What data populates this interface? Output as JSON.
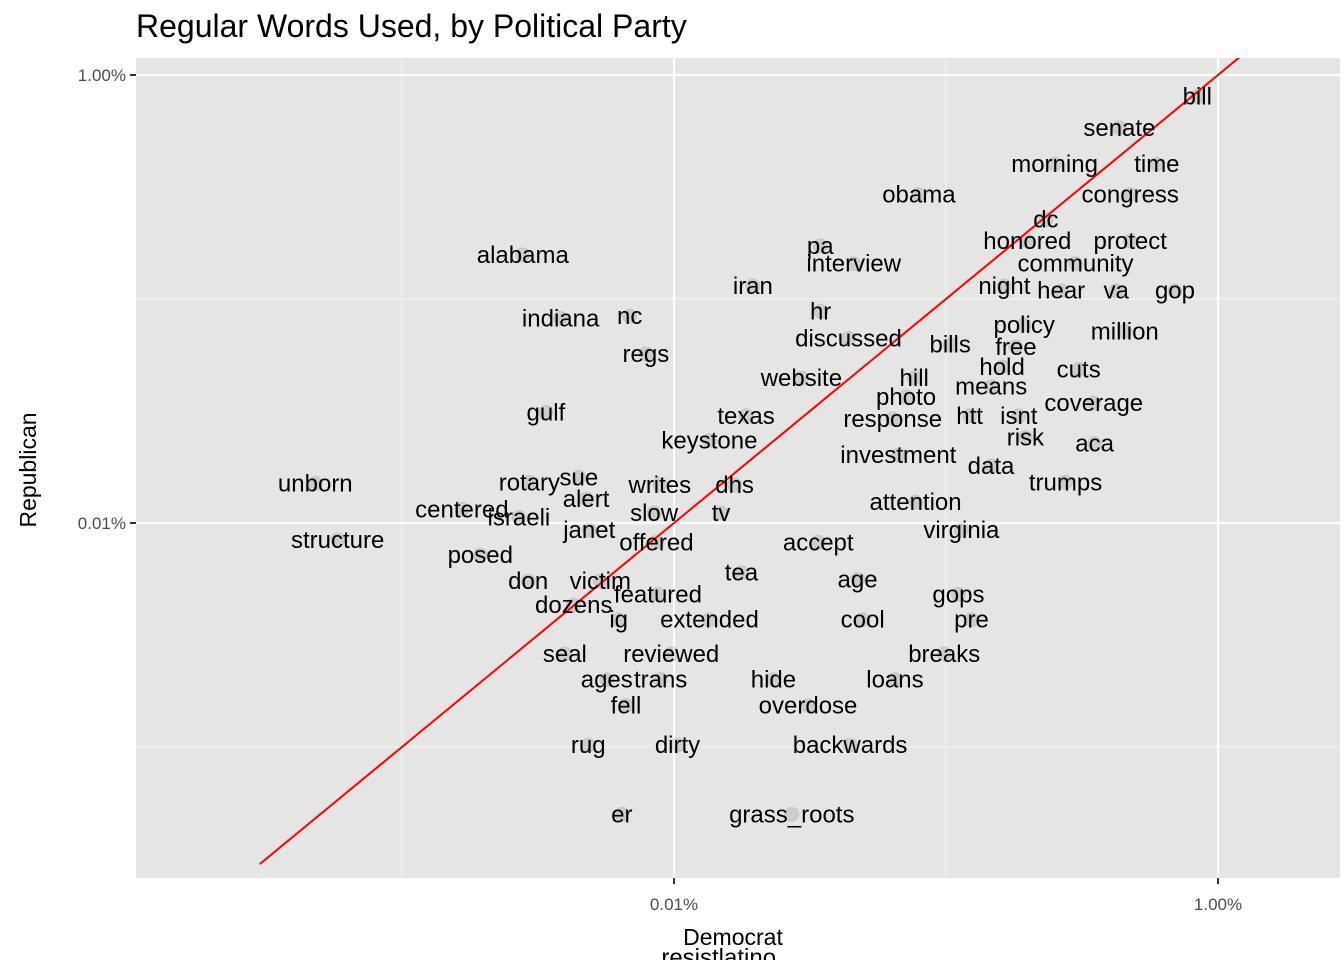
{
  "chart_data": {
    "type": "scatter",
    "title": "Regular Words Used, by Political Party",
    "xlabel": "Democrat",
    "ylabel": "Republican",
    "x_scale": "log10",
    "y_scale": "log10",
    "xlim": [
      0.00014,
      1.6
    ],
    "ylim": [
      2.5e-06,
      1.2
    ],
    "x_ticks": [
      {
        "value": 0.01,
        "label": "0.01%"
      },
      {
        "value": 1.0,
        "label": "1.00%"
      }
    ],
    "y_ticks": [
      {
        "value": 0.01,
        "label": "0.01%"
      },
      {
        "value": 1.0,
        "label": "1.00%"
      }
    ],
    "grid": true,
    "reference_line": {
      "type": "identity",
      "color": "#ff0000"
    },
    "point_color": "rgba(0,0,0,0.1)",
    "panel_color": "#e5e5e5",
    "labeled_points": [
      {
        "word": "bill",
        "x": 0.839,
        "y": 0.8005
      },
      {
        "word": "senate",
        "x": 0.434,
        "y": 0.5807
      },
      {
        "word": "time",
        "x": 0.596,
        "y": 0.4002
      },
      {
        "word": "morning",
        "x": 0.2507,
        "y": 0.4002
      },
      {
        "word": "obama",
        "x": 0.0795,
        "y": 0.2923
      },
      {
        "word": "congress",
        "x": 0.4757,
        "y": 0.2923
      },
      {
        "word": "dc",
        "x": 0.2329,
        "y": 0.2263
      },
      {
        "word": "protect",
        "x": 0.4757,
        "y": 0.1812
      },
      {
        "word": "honored",
        "x": 0.1991,
        "y": 0.1812
      },
      {
        "word": "alabama",
        "x": 0.00278,
        "y": 0.1573
      },
      {
        "word": "pa",
        "x": 0.0345,
        "y": 0.1726
      },
      {
        "word": "interview",
        "x": 0.0458,
        "y": 0.1437
      },
      {
        "word": "community",
        "x": 0.2994,
        "y": 0.1437
      },
      {
        "word": "night",
        "x": 0.1639,
        "y": 0.1143
      },
      {
        "word": "iran",
        "x": 0.0195,
        "y": 0.1143
      },
      {
        "word": "hear",
        "x": 0.2651,
        "y": 0.1089
      },
      {
        "word": "va",
        "x": 0.4222,
        "y": 0.1089
      },
      {
        "word": "gop",
        "x": 0.6947,
        "y": 0.1089
      },
      {
        "word": "indiana",
        "x": 0.00383,
        "y": 0.0819
      },
      {
        "word": "nc",
        "x": 0.00687,
        "y": 0.0839
      },
      {
        "word": "hr",
        "x": 0.0346,
        "y": 0.0881
      },
      {
        "word": "policy",
        "x": 0.1938,
        "y": 0.0767
      },
      {
        "word": "discussed",
        "x": 0.0438,
        "y": 0.0668
      },
      {
        "word": "million",
        "x": 0.4542,
        "y": 0.0717
      },
      {
        "word": "bills",
        "x": 0.1036,
        "y": 0.0625
      },
      {
        "word": "free",
        "x": 0.1807,
        "y": 0.0611
      },
      {
        "word": "regs",
        "x": 0.00788,
        "y": 0.0569
      },
      {
        "word": "hold",
        "x": 0.1608,
        "y": 0.0497
      },
      {
        "word": "cuts",
        "x": 0.3075,
        "y": 0.0485
      },
      {
        "word": "website",
        "x": 0.0294,
        "y": 0.0444
      },
      {
        "word": "hill",
        "x": 0.0764,
        "y": 0.0444
      },
      {
        "word": "means",
        "x": 0.1466,
        "y": 0.0406
      },
      {
        "word": "photo",
        "x": 0.0713,
        "y": 0.0366
      },
      {
        "word": "coverage",
        "x": 0.3494,
        "y": 0.0343
      },
      {
        "word": "gulf",
        "x": 0.00338,
        "y": 0.0312
      },
      {
        "word": "texas",
        "x": 0.0184,
        "y": 0.0301
      },
      {
        "word": "response",
        "x": 0.0637,
        "y": 0.0292
      },
      {
        "word": "htt",
        "x": 0.1221,
        "y": 0.0301
      },
      {
        "word": "isnt",
        "x": 0.1852,
        "y": 0.0301
      },
      {
        "word": "risk",
        "x": 0.1958,
        "y": 0.0241
      },
      {
        "word": "keystone",
        "x": 0.0135,
        "y": 0.0233
      },
      {
        "word": "aca",
        "x": 0.3519,
        "y": 0.0226
      },
      {
        "word": "investment",
        "x": 0.0668,
        "y": 0.0201
      },
      {
        "word": "data",
        "x": 0.1464,
        "y": 0.018
      },
      {
        "word": "trumps",
        "x": 0.2751,
        "y": 0.0152
      },
      {
        "word": "rotary",
        "x": 0.00294,
        "y": 0.0152
      },
      {
        "word": "sue",
        "x": 0.00447,
        "y": 0.016
      },
      {
        "word": "writes",
        "x": 0.00887,
        "y": 0.0148
      },
      {
        "word": "dhs",
        "x": 0.0167,
        "y": 0.0148
      },
      {
        "word": "unborn",
        "x": 0.00048,
        "y": 0.015
      },
      {
        "word": "alert",
        "x": 0.00475,
        "y": 0.0128
      },
      {
        "word": "attention",
        "x": 0.0773,
        "y": 0.0124
      },
      {
        "word": "centered",
        "x": 0.00166,
        "y": 0.0115
      },
      {
        "word": "israeli",
        "x": 0.00269,
        "y": 0.0106
      },
      {
        "word": "slow",
        "x": 0.00845,
        "y": 0.0111
      },
      {
        "word": "tv",
        "x": 0.0149,
        "y": 0.0111
      },
      {
        "word": "janet",
        "x": 0.00488,
        "y": 0.0093
      },
      {
        "word": "virginia",
        "x": 0.1139,
        "y": 0.0093
      },
      {
        "word": "offered",
        "x": 0.00862,
        "y": 0.0082
      },
      {
        "word": "accept",
        "x": 0.0339,
        "y": 0.0082
      },
      {
        "word": "structure",
        "x": 0.00058,
        "y": 0.0084
      },
      {
        "word": "posed",
        "x": 0.00194,
        "y": 0.0072
      },
      {
        "word": "tea",
        "x": 0.0177,
        "y": 0.006
      },
      {
        "word": "age",
        "x": 0.0473,
        "y": 0.0056
      },
      {
        "word": "don",
        "x": 0.00291,
        "y": 0.0055
      },
      {
        "word": "victim",
        "x": 0.00536,
        "y": 0.0055
      },
      {
        "word": "featured",
        "x": 0.00873,
        "y": 0.0048
      },
      {
        "word": "gops",
        "x": 0.1111,
        "y": 0.0048
      },
      {
        "word": "dozens",
        "x": 0.00428,
        "y": 0.0043
      },
      {
        "word": "ig",
        "x": 0.00626,
        "y": 0.0037
      },
      {
        "word": "extended",
        "x": 0.0135,
        "y": 0.0037
      },
      {
        "word": "cool",
        "x": 0.0494,
        "y": 0.0037
      },
      {
        "word": "pre",
        "x": 0.1241,
        "y": 0.0037
      },
      {
        "word": "seal",
        "x": 0.00397,
        "y": 0.0026
      },
      {
        "word": "reviewed",
        "x": 0.00977,
        "y": 0.0026
      },
      {
        "word": "breaks",
        "x": 0.0985,
        "y": 0.0026
      },
      {
        "word": "ages",
        "x": 0.00566,
        "y": 0.002
      },
      {
        "word": "trans",
        "x": 0.00893,
        "y": 0.002
      },
      {
        "word": "hide",
        "x": 0.0232,
        "y": 0.002
      },
      {
        "word": "loans",
        "x": 0.0649,
        "y": 0.002
      },
      {
        "word": "fell",
        "x": 0.00666,
        "y": 0.00153
      },
      {
        "word": "overdose",
        "x": 0.0311,
        "y": 0.00153
      },
      {
        "word": "rug",
        "x": 0.00484,
        "y": 0.00102
      },
      {
        "word": "dirty",
        "x": 0.0103,
        "y": 0.00102
      },
      {
        "word": "backwards",
        "x": 0.0444,
        "y": 0.00102
      },
      {
        "word": "er",
        "x": 0.00643,
        "y": 0.0005
      },
      {
        "word": "grass_roots",
        "x": 0.0271,
        "y": 0.0005
      },
      {
        "word": "resistlatino",
        "x": 0.0146,
        "y": 0.000115
      }
    ]
  }
}
